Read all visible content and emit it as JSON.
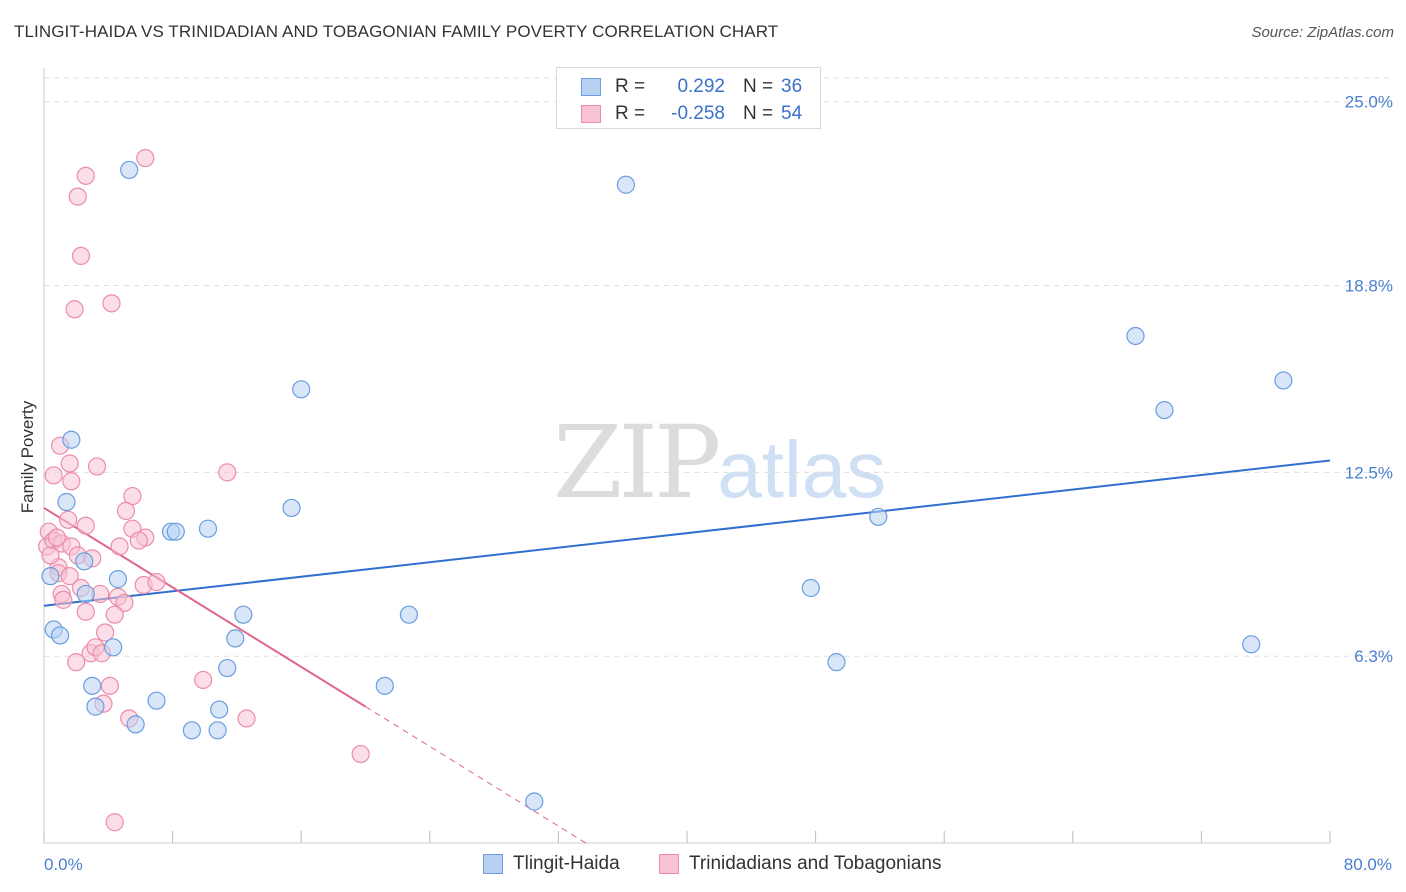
{
  "title": "TLINGIT-HAIDA VS TRINIDADIAN AND TOBAGONIAN FAMILY POVERTY CORRELATION CHART",
  "source": "Source: ZipAtlas.com",
  "watermark": {
    "left": "ZIP",
    "right": "atlas"
  },
  "legend": {
    "r_label": "R =",
    "n_label": "N =",
    "rows": [
      {
        "name": "Tlingit-Haida",
        "r": "0.292",
        "n": "36"
      },
      {
        "name": "Trinidadians and Tobagonians",
        "r": "-0.258",
        "n": "54"
      }
    ]
  },
  "colors": {
    "series_a_fill": "#b8d1f2",
    "series_a_stroke": "#6b9de0",
    "series_a_line": "#2f6fcf",
    "series_b_fill": "#f7c3d3",
    "series_b_stroke": "#ec8cab",
    "series_b_line": "#e0668f",
    "tick_text": "#4a7fd0",
    "grid": "#dddddd"
  },
  "chart_data": {
    "type": "scatter",
    "title": "TLINGIT-HAIDA VS TRINIDADIAN AND TOBAGONIAN FAMILY POVERTY CORRELATION CHART",
    "xlabel": "",
    "ylabel": "Family Poverty",
    "x_unit": "%",
    "xlim": [
      0,
      80
    ],
    "ylim": [
      0,
      25.8
    ],
    "x_tick_labels": [
      {
        "value": 0,
        "label": "0.0%"
      },
      {
        "value": 80,
        "label": "80.0%"
      }
    ],
    "y_tick_labels": [
      {
        "value": 6.3,
        "label": "6.3%"
      },
      {
        "value": 12.5,
        "label": "12.5%"
      },
      {
        "value": 18.8,
        "label": "18.8%"
      },
      {
        "value": 25.0,
        "label": "25.0%"
      }
    ],
    "grid": true,
    "legend_position": "top-center",
    "series": [
      {
        "name": "Tlingit-Haida",
        "r": 0.292,
        "n": 36,
        "trend": {
          "x": [
            0,
            80
          ],
          "y": [
            8.0,
            12.9
          ]
        },
        "points": [
          [
            5.3,
            22.7
          ],
          [
            36.2,
            22.2
          ],
          [
            1.7,
            13.6
          ],
          [
            1.4,
            11.5
          ],
          [
            2.5,
            9.5
          ],
          [
            0.4,
            9.0
          ],
          [
            4.6,
            8.9
          ],
          [
            2.6,
            8.4
          ],
          [
            7.9,
            10.5
          ],
          [
            10.2,
            10.6
          ],
          [
            15.4,
            11.3
          ],
          [
            16.0,
            15.3
          ],
          [
            0.6,
            7.2
          ],
          [
            1.0,
            7.0
          ],
          [
            4.3,
            6.6
          ],
          [
            12.4,
            7.7
          ],
          [
            11.9,
            6.9
          ],
          [
            22.7,
            7.7
          ],
          [
            3.0,
            5.3
          ],
          [
            3.2,
            4.6
          ],
          [
            7.0,
            4.8
          ],
          [
            11.4,
            5.9
          ],
          [
            5.7,
            4.0
          ],
          [
            9.2,
            3.8
          ],
          [
            10.8,
            3.8
          ],
          [
            10.9,
            4.5
          ],
          [
            21.2,
            5.3
          ],
          [
            30.5,
            1.4
          ],
          [
            47.7,
            8.6
          ],
          [
            49.3,
            6.1
          ],
          [
            51.9,
            11.0
          ],
          [
            67.9,
            17.1
          ],
          [
            69.7,
            14.6
          ],
          [
            77.1,
            15.6
          ],
          [
            75.1,
            6.7
          ],
          [
            8.2,
            10.5
          ]
        ]
      },
      {
        "name": "Trinidadians and Tobagonians",
        "r": -0.258,
        "n": 54,
        "trend": {
          "x": [
            0,
            20.0
          ],
          "y": [
            11.3,
            4.6
          ]
        },
        "trend_extension": {
          "x": [
            20.0,
            33.7
          ],
          "y": [
            4.6,
            0.0
          ]
        },
        "points": [
          [
            6.3,
            23.1
          ],
          [
            2.6,
            22.5
          ],
          [
            2.1,
            21.8
          ],
          [
            2.3,
            19.8
          ],
          [
            4.2,
            18.2
          ],
          [
            1.9,
            18.0
          ],
          [
            1.0,
            13.4
          ],
          [
            0.6,
            12.4
          ],
          [
            1.7,
            12.2
          ],
          [
            1.6,
            12.8
          ],
          [
            3.3,
            12.7
          ],
          [
            11.4,
            12.5
          ],
          [
            5.5,
            11.7
          ],
          [
            5.1,
            11.2
          ],
          [
            2.6,
            10.7
          ],
          [
            1.5,
            10.9
          ],
          [
            5.5,
            10.6
          ],
          [
            6.3,
            10.3
          ],
          [
            0.3,
            10.5
          ],
          [
            0.2,
            10.0
          ],
          [
            0.6,
            10.2
          ],
          [
            1.1,
            10.1
          ],
          [
            1.7,
            10.0
          ],
          [
            0.9,
            9.3
          ],
          [
            0.4,
            9.7
          ],
          [
            0.9,
            9.1
          ],
          [
            1.6,
            9.0
          ],
          [
            2.1,
            9.7
          ],
          [
            3.0,
            9.6
          ],
          [
            4.7,
            10.0
          ],
          [
            5.9,
            10.2
          ],
          [
            6.2,
            8.7
          ],
          [
            1.1,
            8.4
          ],
          [
            1.2,
            8.2
          ],
          [
            2.6,
            7.8
          ],
          [
            3.5,
            8.4
          ],
          [
            4.6,
            8.3
          ],
          [
            5.0,
            8.1
          ],
          [
            4.4,
            7.7
          ],
          [
            3.8,
            7.1
          ],
          [
            2.9,
            6.4
          ],
          [
            3.2,
            6.6
          ],
          [
            3.6,
            6.4
          ],
          [
            2.0,
            6.1
          ],
          [
            4.1,
            5.3
          ],
          [
            3.7,
            4.7
          ],
          [
            5.3,
            4.2
          ],
          [
            9.9,
            5.5
          ],
          [
            12.6,
            4.2
          ],
          [
            19.7,
            3.0
          ],
          [
            4.4,
            0.7
          ],
          [
            0.8,
            10.3
          ],
          [
            2.3,
            8.6
          ],
          [
            7.0,
            8.8
          ]
        ]
      }
    ]
  }
}
